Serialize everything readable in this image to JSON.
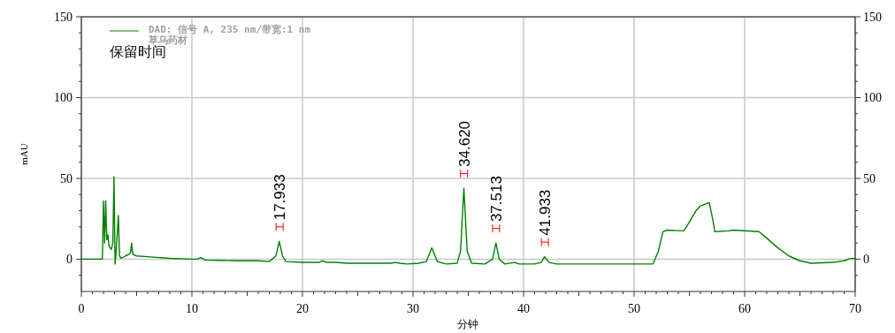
{
  "chart_data": {
    "type": "line",
    "xlabel": "分钟",
    "ylabel": "mAU",
    "legend": "top left",
    "grid": true,
    "line_style": "solid",
    "xlim": [
      0,
      70
    ],
    "ylim": [
      -20,
      150
    ],
    "y2lim": [
      -20,
      150
    ],
    "xticks": [
      0,
      {
        "value": 1,
        "label": null
      },
      {
        "value": 2,
        "label": null
      },
      {
        "value": 3,
        "label": null
      },
      {
        "value": 4,
        "label": null
      },
      {
        "value": 5,
        "label": null
      },
      {
        "value": 6,
        "label": null
      },
      {
        "value": 7,
        "label": null
      },
      {
        "value": 8,
        "label": null
      },
      {
        "value": 9,
        "label": null
      },
      10,
      {
        "value": 11,
        "label": null
      },
      {
        "value": 12,
        "label": null
      },
      {
        "value": 13,
        "label": null
      },
      {
        "value": 14,
        "label": null
      },
      {
        "value": 15,
        "label": null
      },
      {
        "value": 16,
        "label": null
      },
      {
        "value": 17,
        "label": null
      },
      {
        "value": 18,
        "label": null
      },
      {
        "value": 19,
        "label": null
      },
      20,
      {
        "value": 21,
        "label": null
      },
      {
        "value": 22,
        "label": null
      },
      {
        "value": 23,
        "label": null
      },
      {
        "value": 24,
        "label": null
      },
      {
        "value": 25,
        "label": null
      },
      {
        "value": 26,
        "label": null
      },
      {
        "value": 27,
        "label": null
      },
      {
        "value": 28,
        "label": null
      },
      {
        "value": 29,
        "label": null
      },
      30,
      {
        "value": 31,
        "label": null
      },
      {
        "value": 32,
        "label": null
      },
      {
        "value": 33,
        "label": null
      },
      {
        "value": 34,
        "label": null
      },
      {
        "value": 35,
        "label": null
      },
      {
        "value": 36,
        "label": null
      },
      {
        "value": 37,
        "label": null
      },
      {
        "value": 38,
        "label": null
      },
      {
        "value": 39,
        "label": null
      },
      40,
      {
        "value": 41,
        "label": null
      },
      {
        "value": 42,
        "label": null
      },
      {
        "value": 43,
        "label": null
      },
      {
        "value": 44,
        "label": null
      },
      {
        "value": 45,
        "label": null
      },
      {
        "value": 46,
        "label": null
      },
      {
        "value": 47,
        "label": null
      },
      {
        "value": 48,
        "label": null
      },
      {
        "value": 49,
        "label": null
      },
      50,
      {
        "value": 51,
        "label": null
      },
      {
        "value": 52,
        "label": null
      },
      {
        "value": 53,
        "label": null
      },
      {
        "value": 54,
        "label": null
      },
      {
        "value": 55,
        "label": null
      },
      {
        "value": 56,
        "label": null
      },
      {
        "value": 57,
        "label": null
      },
      {
        "value": 58,
        "label": null
      },
      {
        "value": 59,
        "label": null
      },
      60,
      {
        "value": 61,
        "label": null
      },
      {
        "value": 62,
        "label": null
      },
      {
        "value": 63,
        "label": null
      },
      {
        "value": 64,
        "label": null
      },
      {
        "value": 65,
        "label": null
      },
      {
        "value": 66,
        "label": null
      },
      {
        "value": 67,
        "label": null
      },
      {
        "value": 68,
        "label": null
      },
      {
        "value": 69,
        "label": null
      },
      70
    ],
    "yticks": [
      {
        "value": -10,
        "label": null
      },
      0,
      {
        "value": 10,
        "label": null
      },
      {
        "value": 20,
        "label": null
      },
      {
        "value": 30,
        "label": null
      },
      {
        "value": 40,
        "label": null
      },
      50,
      {
        "value": 60,
        "label": null
      },
      {
        "value": 70,
        "label": null
      },
      {
        "value": 80,
        "label": null
      },
      {
        "value": 90,
        "label": null
      },
      100,
      {
        "value": 110,
        "label": null
      },
      {
        "value": 120,
        "label": null
      },
      {
        "value": 130,
        "label": null
      },
      {
        "value": 140,
        "label": null
      },
      150
    ],
    "y2ticks": [
      {
        "value": -10,
        "label": null
      },
      0,
      {
        "value": 10,
        "label": null
      },
      {
        "value": 20,
        "label": null
      },
      {
        "value": 30,
        "label": null
      },
      {
        "value": 40,
        "label": null
      },
      50,
      {
        "value": 60,
        "label": null
      },
      {
        "value": 70,
        "label": null
      },
      {
        "value": 80,
        "label": null
      },
      {
        "value": 90,
        "label": null
      },
      100,
      {
        "value": 110,
        "label": null
      },
      {
        "value": 120,
        "label": null
      },
      {
        "value": 130,
        "label": null
      },
      {
        "value": 140,
        "label": null
      },
      150
    ],
    "series": [
      {
        "name": "DAD: 信号 A, 235 nm/带宽:1 nm\n草乌药材",
        "color": "#008000",
        "x": [
          0,
          1.9,
          2.0,
          2.1,
          2.2,
          2.3,
          2.4,
          2.5,
          2.7,
          2.85,
          2.95,
          3.05,
          3.15,
          3.35,
          3.45,
          3.6,
          4.0,
          4.3,
          4.45,
          4.55,
          4.65,
          5.0,
          6,
          8,
          10,
          10.5,
          10.8,
          11.2,
          14,
          16,
          17,
          17.6,
          17.9,
          18.2,
          18.5,
          20,
          21.5,
          21.8,
          22.2,
          23,
          24,
          28,
          28.4,
          28.8,
          29.5,
          30.5,
          31.2,
          31.7,
          32.2,
          33,
          34,
          34.3,
          34.6,
          34.9,
          35.3,
          36.5,
          37.2,
          37.5,
          37.8,
          38.3,
          39.2,
          39.6,
          41,
          41.6,
          41.9,
          42.3,
          43,
          46,
          51.7,
          52.2,
          52.6,
          53,
          54.5,
          55,
          55.6,
          56,
          56.8,
          57.1,
          57.3,
          58.5,
          59,
          61.3,
          62,
          63,
          64,
          65,
          66,
          68,
          69,
          69.5,
          70
        ],
        "values": [
          0,
          0,
          36,
          10,
          36,
          12,
          15,
          8,
          6,
          10,
          51,
          -3,
          5,
          27,
          2,
          0.5,
          2,
          3,
          4,
          10,
          3,
          2,
          1.5,
          0.5,
          0,
          0,
          1,
          -0.5,
          -1,
          -1,
          -1.5,
          2,
          11,
          2,
          -1.5,
          -2,
          -2,
          -1,
          -2,
          -2,
          -2.5,
          -2.5,
          -2,
          -2.5,
          -3,
          -2.5,
          -1.5,
          7,
          -1.5,
          -3,
          -2.5,
          5,
          44,
          5,
          -2.5,
          -3,
          0,
          10,
          0,
          -3,
          -2,
          -3,
          -3,
          -2,
          1.5,
          -2,
          -3,
          -3,
          -3,
          5,
          17,
          18,
          17.5,
          23,
          30,
          33,
          35,
          25,
          17,
          17.5,
          18,
          17,
          13,
          7,
          2,
          -1,
          -2.5,
          -2,
          -1,
          0.3,
          0.5
        ]
      }
    ],
    "annotations": [
      "保留时间",
      {
        "text": "17.933",
        "x": 17.933,
        "y": 11
      },
      {
        "text": "34.620",
        "x": 34.62,
        "y": 44
      },
      {
        "text": "37.513",
        "x": 37.513,
        "y": 10
      },
      {
        "text": "41.933",
        "x": 41.933,
        "y": 1.5
      }
    ]
  }
}
